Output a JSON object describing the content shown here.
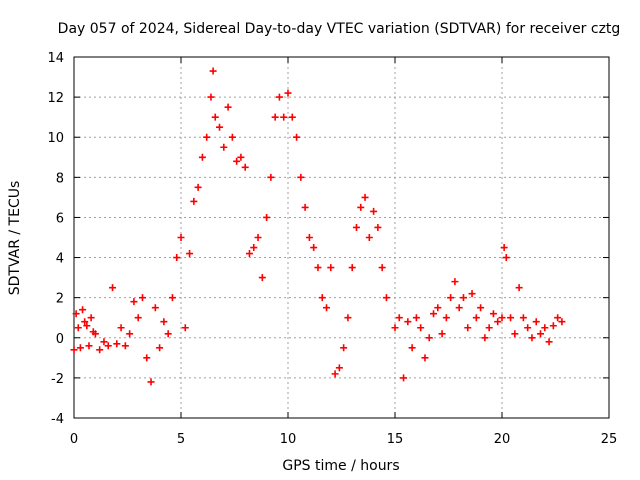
{
  "chart_data": {
    "type": "scatter",
    "title": "Day 057 of 2024, Sidereal Day-to-day VTEC variation (SDTVAR) for receiver cztg",
    "xlabel": "GPS time / hours",
    "ylabel": "SDTVAR / TECUs",
    "xlim": [
      0,
      25
    ],
    "ylim": [
      -4,
      14
    ],
    "xticks": [
      0,
      5,
      10,
      15,
      20,
      25
    ],
    "yticks": [
      -4,
      -2,
      0,
      2,
      4,
      6,
      8,
      10,
      12,
      14
    ],
    "xtick_labels": [
      "0",
      "5",
      "10",
      "15",
      "20",
      "25"
    ],
    "ytick_labels": [
      "-4",
      "-2",
      "0",
      "2",
      "4",
      "6",
      "8",
      "10",
      "12",
      "14"
    ],
    "grid": true,
    "marker": "+",
    "series": [
      {
        "name": "SDTVAR",
        "color": "#ff0000",
        "x": [
          0.0,
          0.1,
          0.2,
          0.3,
          0.4,
          0.5,
          0.6,
          0.7,
          0.8,
          0.9,
          1.0,
          1.2,
          1.4,
          1.6,
          1.8,
          2.0,
          2.2,
          2.4,
          2.6,
          2.8,
          3.0,
          3.2,
          3.4,
          3.6,
          3.8,
          4.0,
          4.2,
          4.4,
          4.6,
          4.8,
          5.0,
          5.2,
          5.4,
          5.6,
          5.8,
          6.0,
          6.2,
          6.4,
          6.5,
          6.6,
          6.8,
          7.0,
          7.2,
          7.4,
          7.6,
          7.8,
          8.0,
          8.2,
          8.4,
          8.6,
          8.8,
          9.0,
          9.2,
          9.4,
          9.6,
          9.8,
          10.0,
          10.2,
          10.4,
          10.6,
          10.8,
          11.0,
          11.2,
          11.4,
          11.6,
          11.8,
          12.0,
          12.2,
          12.4,
          12.6,
          12.8,
          13.0,
          13.2,
          13.4,
          13.6,
          13.8,
          14.0,
          14.2,
          14.4,
          14.6,
          15.0,
          15.2,
          15.4,
          15.6,
          15.8,
          16.0,
          16.2,
          16.4,
          16.6,
          16.8,
          17.0,
          17.2,
          17.4,
          17.6,
          17.8,
          18.0,
          18.2,
          18.4,
          18.6,
          18.8,
          19.0,
          19.2,
          19.4,
          19.6,
          19.8,
          20.0,
          20.1,
          20.2,
          20.4,
          20.6,
          20.8,
          21.0,
          21.2,
          21.4,
          21.6,
          21.8,
          22.0,
          22.2,
          22.4,
          22.6,
          22.8
        ],
        "y": [
          -0.6,
          1.2,
          0.5,
          -0.5,
          1.4,
          0.8,
          0.6,
          -0.4,
          1.0,
          0.3,
          0.2,
          -0.6,
          -0.2,
          -0.4,
          2.5,
          -0.3,
          0.5,
          -0.4,
          0.2,
          1.8,
          1.0,
          2.0,
          -1.0,
          -2.2,
          1.5,
          -0.5,
          0.8,
          0.2,
          2.0,
          4.0,
          5.0,
          0.5,
          4.2,
          6.8,
          7.5,
          9.0,
          10.0,
          12.0,
          13.3,
          11.0,
          10.5,
          9.5,
          11.5,
          10.0,
          8.8,
          9.0,
          8.5,
          4.2,
          4.5,
          5.0,
          3.0,
          6.0,
          8.0,
          11.0,
          12.0,
          11.0,
          12.2,
          11.0,
          10.0,
          8.0,
          6.5,
          5.0,
          4.5,
          3.5,
          2.0,
          1.5,
          3.5,
          -1.8,
          -1.5,
          -0.5,
          1.0,
          3.5,
          5.5,
          6.5,
          7.0,
          5.0,
          6.3,
          5.5,
          3.5,
          2.0,
          0.5,
          1.0,
          -2.0,
          0.8,
          -0.5,
          1.0,
          0.5,
          -1.0,
          0.0,
          1.2,
          1.5,
          0.2,
          1.0,
          2.0,
          2.8,
          1.5,
          2.0,
          0.5,
          2.2,
          1.0,
          1.5,
          0.0,
          0.5,
          1.2,
          0.8,
          1.0,
          4.5,
          4.0,
          1.0,
          0.2,
          2.5,
          1.0,
          0.5,
          0.0,
          0.8,
          0.2,
          0.5,
          -0.2,
          0.6,
          1.0,
          0.8
        ]
      }
    ]
  }
}
